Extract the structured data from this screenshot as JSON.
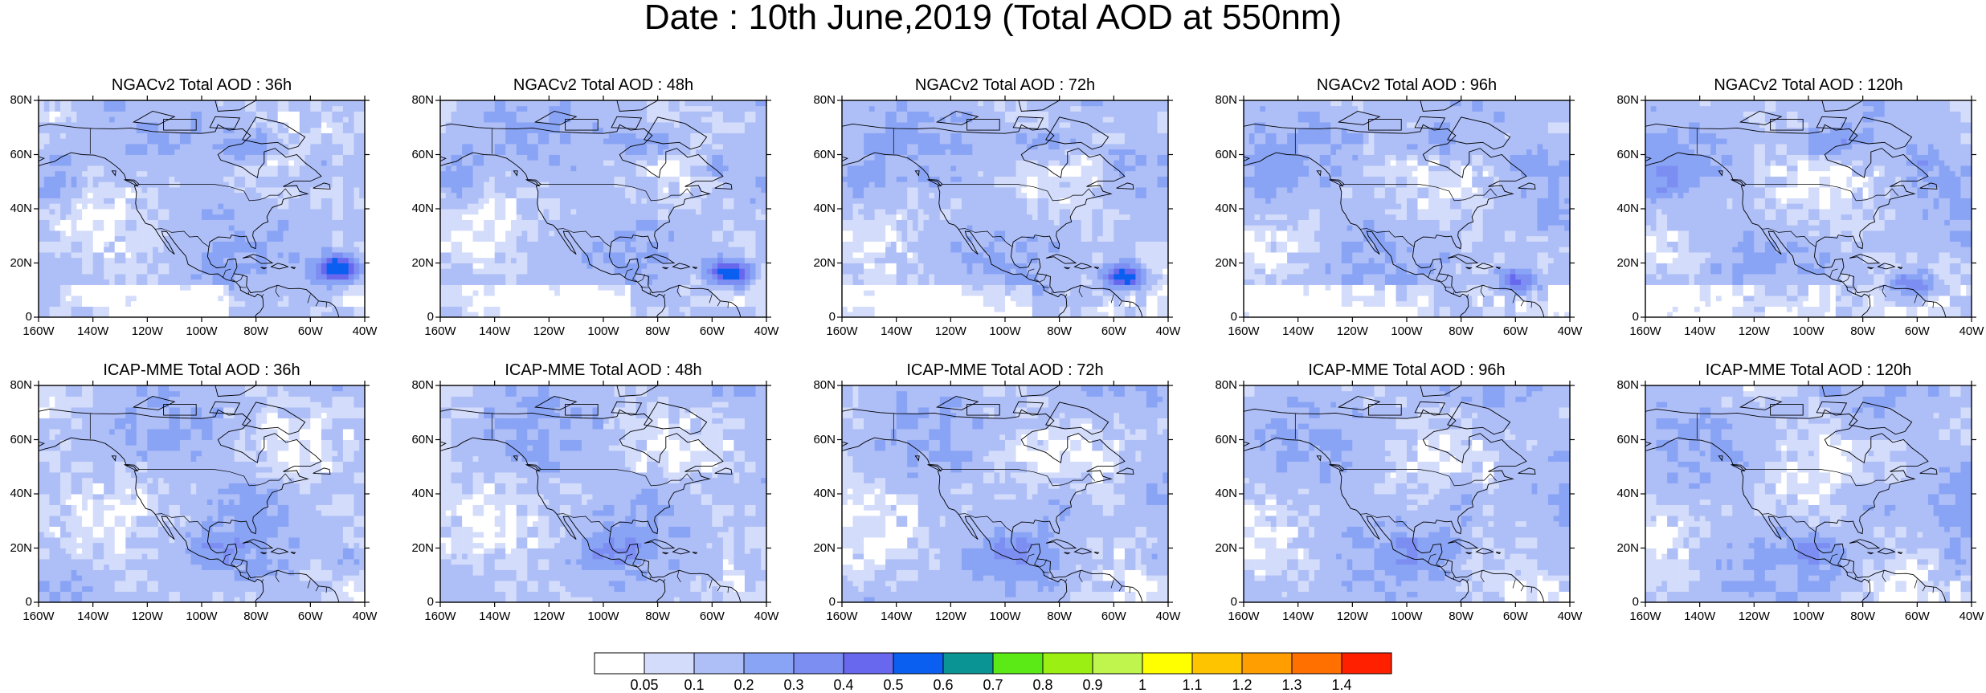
{
  "title": "Date : 10th June,2019 (Total AOD at 550nm)",
  "map_extent": {
    "lon": [
      -160,
      -40
    ],
    "lat": [
      0,
      80
    ]
  },
  "lat_ticks": [
    {
      "value": 0,
      "label": "0"
    },
    {
      "value": 20,
      "label": "20N"
    },
    {
      "value": 40,
      "label": "40N"
    },
    {
      "value": 60,
      "label": "60N"
    },
    {
      "value": 80,
      "label": "80N"
    }
  ],
  "lon_ticks": [
    {
      "value": -160,
      "label": "160W"
    },
    {
      "value": -140,
      "label": "140W"
    },
    {
      "value": -120,
      "label": "120W"
    },
    {
      "value": -100,
      "label": "100W"
    },
    {
      "value": -80,
      "label": "80W"
    },
    {
      "value": -60,
      "label": "60W"
    },
    {
      "value": -40,
      "label": "40W"
    }
  ],
  "rows": [
    {
      "model": "NGACv2",
      "panels": [
        {
          "title": "NGACv2 Total AOD : 36h",
          "hotspot": 0.55
        },
        {
          "title": "NGACv2 Total AOD : 48h",
          "hotspot": 0.55
        },
        {
          "title": "NGACv2 Total AOD : 72h",
          "hotspot": 0.5
        },
        {
          "title": "NGACv2 Total AOD : 96h",
          "hotspot": 0.4
        },
        {
          "title": "NGACv2 Total AOD : 120h",
          "hotspot": 0.35
        }
      ]
    },
    {
      "model": "ICAP-MME",
      "panels": [
        {
          "title": "ICAP-MME Total AOD : 36h",
          "hotspot": 0.3
        },
        {
          "title": "ICAP-MME Total AOD : 48h",
          "hotspot": 0.3
        },
        {
          "title": "ICAP-MME Total AOD : 72h",
          "hotspot": 0.35
        },
        {
          "title": "ICAP-MME Total AOD : 96h",
          "hotspot": 0.3
        },
        {
          "title": "ICAP-MME Total AOD : 120h",
          "hotspot": 0.3
        }
      ]
    }
  ],
  "colorbar": {
    "colors": [
      "#ffffff",
      "#d3dcfa",
      "#aebef7",
      "#8aa4f5",
      "#7d8ef3",
      "#6868ef",
      "#0a5ff0",
      "#0a9494",
      "#5cea16",
      "#9cef12",
      "#c0f54d",
      "#ffff00",
      "#ffc400",
      "#ff9e00",
      "#ff7000",
      "#ff2000"
    ],
    "labels": [
      "0.05",
      "0.1",
      "0.2",
      "0.3",
      "0.4",
      "0.5",
      "0.6",
      "0.7",
      "0.8",
      "0.9",
      "1",
      "1.1",
      "1.2",
      "1.3",
      "1.4"
    ]
  }
}
